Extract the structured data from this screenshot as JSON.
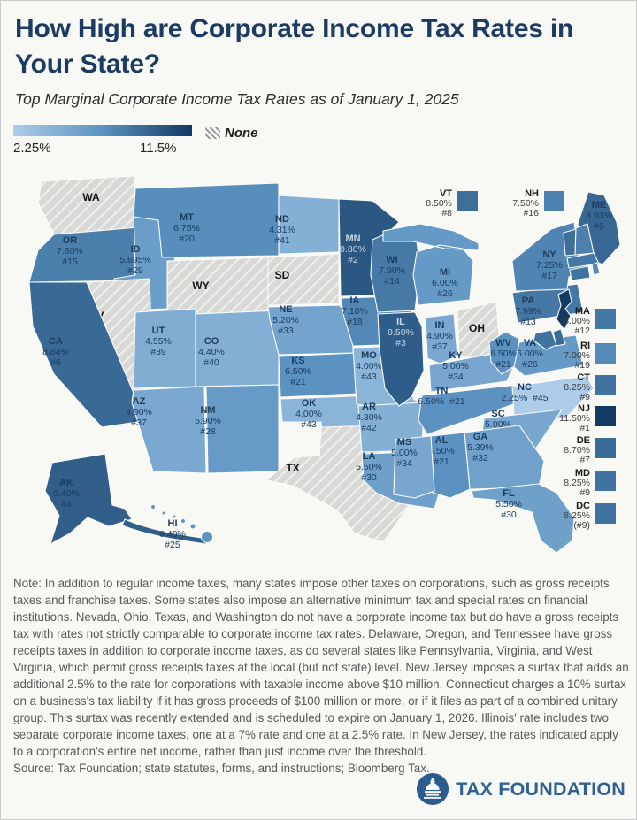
{
  "header": {
    "title": "How High are Corporate Income Tax Rates in Your State?",
    "subtitle": "Top Marginal Corporate Income Tax Rates as of January 1, 2025"
  },
  "legend": {
    "min_label": "2.25%",
    "max_label": "11.5%",
    "none_label": "None",
    "min_color": "#adcce9",
    "mid_color": "#5b92c1",
    "max_color": "#123a63",
    "none_fill": "#d8d8d6",
    "hatch_line_color": "#efefec",
    "dark_label_color": "#1c3c5e",
    "light_label_color": "#c7d6e5",
    "none_label_color": "#141414"
  },
  "chart_data": {
    "type": "choropleth",
    "region": "United States",
    "metric": "Top marginal corporate income tax rate",
    "as_of": "January 1, 2025",
    "range": [
      2.25,
      11.5
    ],
    "no_tax_states": [
      "NV",
      "OH",
      "SD",
      "TX",
      "WA",
      "WY"
    ],
    "states": [
      {
        "abbr": "WA",
        "rate": null,
        "rate_label": "",
        "rank_label": ""
      },
      {
        "abbr": "OR",
        "rate": 7.6,
        "rate_label": "7.60%",
        "rank_label": "#15"
      },
      {
        "abbr": "CA",
        "rate": 8.84,
        "rate_label": "8.84%",
        "rank_label": "#6"
      },
      {
        "abbr": "NV",
        "rate": null,
        "rate_label": "",
        "rank_label": ""
      },
      {
        "abbr": "ID",
        "rate": 5.695,
        "rate_label": "5.695%",
        "rank_label": "#29"
      },
      {
        "abbr": "MT",
        "rate": 6.75,
        "rate_label": "6.75%",
        "rank_label": "#20"
      },
      {
        "abbr": "WY",
        "rate": null,
        "rate_label": "",
        "rank_label": ""
      },
      {
        "abbr": "UT",
        "rate": 4.55,
        "rate_label": "4.55%",
        "rank_label": "#39"
      },
      {
        "abbr": "AZ",
        "rate": 4.9,
        "rate_label": "4.90%",
        "rank_label": "#37"
      },
      {
        "abbr": "CO",
        "rate": 4.4,
        "rate_label": "4.40%",
        "rank_label": "#40"
      },
      {
        "abbr": "NM",
        "rate": 5.9,
        "rate_label": "5.90%",
        "rank_label": "#28"
      },
      {
        "abbr": "ND",
        "rate": 4.31,
        "rate_label": "4.31%",
        "rank_label": "#41"
      },
      {
        "abbr": "SD",
        "rate": null,
        "rate_label": "",
        "rank_label": ""
      },
      {
        "abbr": "NE",
        "rate": 5.2,
        "rate_label": "5.20%",
        "rank_label": "#33"
      },
      {
        "abbr": "KS",
        "rate": 6.5,
        "rate_label": "6.50%",
        "rank_label": "#21"
      },
      {
        "abbr": "OK",
        "rate": 4.0,
        "rate_label": "4.00%",
        "rank_label": "#43"
      },
      {
        "abbr": "TX",
        "rate": null,
        "rate_label": "",
        "rank_label": ""
      },
      {
        "abbr": "MN",
        "rate": 9.8,
        "rate_label": "9.80%",
        "rank_label": "#2"
      },
      {
        "abbr": "IA",
        "rate": 7.1,
        "rate_label": "7.10%",
        "rank_label": "#18"
      },
      {
        "abbr": "MO",
        "rate": 4.0,
        "rate_label": "4.00%",
        "rank_label": "#43"
      },
      {
        "abbr": "AR",
        "rate": 4.3,
        "rate_label": "4.30%",
        "rank_label": "#42"
      },
      {
        "abbr": "LA",
        "rate": 5.5,
        "rate_label": "5.50%",
        "rank_label": "#30"
      },
      {
        "abbr": "WI",
        "rate": 7.9,
        "rate_label": "7.90%",
        "rank_label": "#14"
      },
      {
        "abbr": "IL",
        "rate": 9.5,
        "rate_label": "9.50%",
        "rank_label": "#3"
      },
      {
        "abbr": "MI",
        "rate": 6.0,
        "rate_label": "6.00%",
        "rank_label": "#26"
      },
      {
        "abbr": "IN",
        "rate": 4.9,
        "rate_label": "4.90%",
        "rank_label": "#37"
      },
      {
        "abbr": "OH",
        "rate": null,
        "rate_label": "",
        "rank_label": ""
      },
      {
        "abbr": "KY",
        "rate": 5.0,
        "rate_label": "5.00%",
        "rank_label": "#34"
      },
      {
        "abbr": "TN",
        "rate": 6.5,
        "rate_label": "6.50%",
        "rank_label": "#21"
      },
      {
        "abbr": "MS",
        "rate": 5.0,
        "rate_label": "5.00%",
        "rank_label": "#34"
      },
      {
        "abbr": "AL",
        "rate": 6.5,
        "rate_label": "6.50%",
        "rank_label": "#21"
      },
      {
        "abbr": "GA",
        "rate": 5.39,
        "rate_label": "5.39%",
        "rank_label": "#32"
      },
      {
        "abbr": "FL",
        "rate": 5.5,
        "rate_label": "5.50%",
        "rank_label": "#30"
      },
      {
        "abbr": "WV",
        "rate": 6.5,
        "rate_label": "6.50%",
        "rank_label": "#21"
      },
      {
        "abbr": "VA",
        "rate": 6.0,
        "rate_label": "6.00%",
        "rank_label": "#26"
      },
      {
        "abbr": "NC",
        "rate": 2.25,
        "rate_label": "2.25%",
        "rank_label": "#45"
      },
      {
        "abbr": "SC",
        "rate": 5.0,
        "rate_label": "5.00%",
        "rank_label": "#34"
      },
      {
        "abbr": "PA",
        "rate": 7.99,
        "rate_label": "7.99%",
        "rank_label": "#13"
      },
      {
        "abbr": "NY",
        "rate": 7.25,
        "rate_label": "7.25%",
        "rank_label": "#17"
      },
      {
        "abbr": "ME",
        "rate": 8.93,
        "rate_label": "8.93%",
        "rank_label": "#5"
      },
      {
        "abbr": "VT",
        "rate": 8.5,
        "rate_label": "8.50%",
        "rank_label": "#8"
      },
      {
        "abbr": "NH",
        "rate": 7.5,
        "rate_label": "7.50%",
        "rank_label": "#16"
      },
      {
        "abbr": "MA",
        "rate": 8.0,
        "rate_label": "8.00%",
        "rank_label": "#12"
      },
      {
        "abbr": "RI",
        "rate": 7.0,
        "rate_label": "7.00%",
        "rank_label": "#19"
      },
      {
        "abbr": "CT",
        "rate": 8.25,
        "rate_label": "8.25%",
        "rank_label": "#9"
      },
      {
        "abbr": "NJ",
        "rate": 11.5,
        "rate_label": "11.50%",
        "rank_label": "#1"
      },
      {
        "abbr": "DE",
        "rate": 8.7,
        "rate_label": "8.70%",
        "rank_label": "#7"
      },
      {
        "abbr": "MD",
        "rate": 8.25,
        "rate_label": "8.25%",
        "rank_label": "#9"
      },
      {
        "abbr": "DC",
        "rate": 8.25,
        "rate_label": "8.25%",
        "rank_label": "(#9)"
      },
      {
        "abbr": "AK",
        "rate": 9.4,
        "rate_label": "9.40%",
        "rank_label": "#4"
      },
      {
        "abbr": "HI",
        "rate": 6.4,
        "rate_label": "6.40%",
        "rank_label": "#25"
      }
    ]
  },
  "footer": {
    "note": "Note: In addition to regular income taxes, many states impose other taxes on corporations, such as gross receipts taxes and franchise taxes. Some states also impose an alternative minimum tax and special rates on financial institutions. Nevada, Ohio, Texas, and Washington do not have a corporate income tax but do have a gross receipts tax with rates not strictly comparable to corporate income tax rates. Delaware, Oregon, and Tennessee have gross receipts taxes in addition to corporate income taxes, as do several states like Pennsylvania, Virginia, and West Virginia, which permit gross receipts taxes at the local (but not state) level. New Jersey imposes a surtax that adds an additional 2.5% to the rate for corporations with taxable income above $10 million. Connecticut charges a 10% surtax on a business's tax liability if it has gross proceeds of $100 million or more, or if it files as part of a combined unitary group. This surtax was recently extended and is scheduled to expire on January 1, 2026. Illinois' rate includes two separate corporate income taxes, one at a 7% rate and one at a 2.5% rate. In New Jersey, the rates indicated apply to a corporation's entire net income, rather than just income over the threshold.",
    "source": "Source: Tax Foundation; state statutes, forms, and instructions; Bloomberg Tax."
  },
  "logo": {
    "text": "TAX FOUNDATION"
  }
}
